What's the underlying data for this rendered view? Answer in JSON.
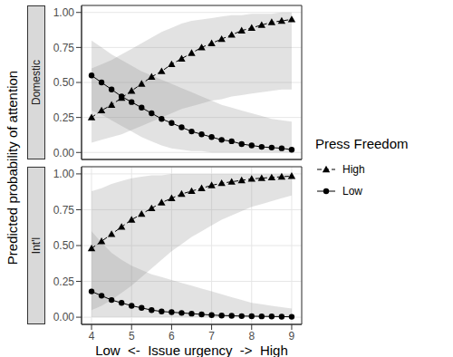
{
  "chart_data": [
    {
      "type": "line",
      "title": "Domestic",
      "ylabel": "Predicted probability of attention",
      "legend_title": "Press Freedom",
      "legend": "right",
      "grid": true,
      "tick_labels": "y",
      "x": [
        4,
        4.25,
        4.5,
        4.75,
        5,
        5.25,
        5.5,
        5.75,
        6,
        6.25,
        6.5,
        6.75,
        7,
        7.25,
        7.5,
        7.75,
        8,
        8.25,
        8.5,
        8.75,
        9
      ],
      "xlim": [
        3.75,
        9.25
      ],
      "xticks": [
        4,
        5,
        6,
        7,
        8,
        9
      ],
      "ylim": [
        -0.05,
        1.05
      ],
      "yticks": [
        {
          "value": 0,
          "label": "0.00"
        },
        {
          "value": 0.25,
          "label": "0.25"
        },
        {
          "value": 0.5,
          "label": "0.50"
        },
        {
          "value": 0.75,
          "label": "0.75"
        },
        {
          "value": 1,
          "label": "1.00"
        }
      ],
      "series": [
        {
          "name": "High",
          "color": "#000000",
          "marker": "triangle",
          "line_style": "dashed",
          "values": [
            0.25,
            0.3,
            0.34,
            0.39,
            0.44,
            0.49,
            0.54,
            0.58,
            0.63,
            0.67,
            0.71,
            0.75,
            0.78,
            0.81,
            0.84,
            0.87,
            0.89,
            0.91,
            0.93,
            0.94,
            0.95
          ],
          "lower": [
            0.07,
            0.09,
            0.11,
            0.13,
            0.16,
            0.19,
            0.22,
            0.25,
            0.28,
            0.31,
            0.33,
            0.35,
            0.37,
            0.38,
            0.4,
            0.41,
            0.42,
            0.43,
            0.44,
            0.45,
            0.45
          ],
          "upper": [
            0.6,
            0.63,
            0.66,
            0.7,
            0.74,
            0.78,
            0.82,
            0.86,
            0.89,
            0.92,
            0.94,
            0.95,
            0.96,
            0.97,
            0.98,
            0.98,
            0.99,
            0.99,
            0.99,
            1,
            1
          ]
        },
        {
          "name": "Low",
          "color": "#000000",
          "marker": "circle",
          "line_style": "solid",
          "values": [
            0.55,
            0.5,
            0.45,
            0.4,
            0.36,
            0.32,
            0.28,
            0.24,
            0.21,
            0.18,
            0.15,
            0.13,
            0.11,
            0.09,
            0.08,
            0.06,
            0.05,
            0.04,
            0.035,
            0.03,
            0.02
          ],
          "lower": [
            0.3,
            0.27,
            0.23,
            0.19,
            0.15,
            0.11,
            0.08,
            0.05,
            0.03,
            0.02,
            0.01,
            0.01,
            0,
            0,
            0,
            0,
            0,
            0,
            0,
            0,
            0
          ],
          "upper": [
            0.8,
            0.75,
            0.7,
            0.66,
            0.62,
            0.58,
            0.55,
            0.52,
            0.49,
            0.46,
            0.43,
            0.4,
            0.37,
            0.34,
            0.32,
            0.3,
            0.28,
            0.26,
            0.24,
            0.23,
            0.22
          ]
        }
      ]
    },
    {
      "type": "line",
      "title": "Int'l",
      "xlabel": "Low  <-  Issue urgency  ->  High",
      "grid": true,
      "x": [
        4,
        4.25,
        4.5,
        4.75,
        5,
        5.25,
        5.5,
        5.75,
        6,
        6.25,
        6.5,
        6.75,
        7,
        7.25,
        7.5,
        7.75,
        8,
        8.25,
        8.5,
        8.75,
        9
      ],
      "xlim": [
        3.75,
        9.25
      ],
      "xticks": [
        4,
        5,
        6,
        7,
        8,
        9
      ],
      "ylim": [
        -0.05,
        1.05
      ],
      "yticks": [
        {
          "value": 0,
          "label": "0.00"
        },
        {
          "value": 0.25,
          "label": "0.25"
        },
        {
          "value": 0.5,
          "label": "0.50"
        },
        {
          "value": 0.75,
          "label": "0.75"
        },
        {
          "value": 1,
          "label": "1.00"
        }
      ],
      "series": [
        {
          "name": "High",
          "color": "#000000",
          "marker": "triangle",
          "line_style": "dashed",
          "values": [
            0.48,
            0.53,
            0.58,
            0.63,
            0.68,
            0.72,
            0.76,
            0.8,
            0.83,
            0.86,
            0.88,
            0.9,
            0.92,
            0.935,
            0.945,
            0.955,
            0.965,
            0.97,
            0.975,
            0.98,
            0.985
          ],
          "lower": [
            0.05,
            0.08,
            0.12,
            0.17,
            0.22,
            0.28,
            0.34,
            0.4,
            0.46,
            0.51,
            0.56,
            0.6,
            0.64,
            0.68,
            0.71,
            0.74,
            0.77,
            0.79,
            0.81,
            0.83,
            0.85
          ],
          "upper": [
            0.88,
            0.9,
            0.93,
            0.95,
            0.97,
            0.98,
            0.99,
            0.99,
            1,
            1,
            1,
            1,
            1,
            1,
            1,
            1,
            1,
            1,
            1,
            1,
            1
          ]
        },
        {
          "name": "Low",
          "color": "#000000",
          "marker": "circle",
          "line_style": "solid",
          "values": [
            0.18,
            0.15,
            0.12,
            0.1,
            0.08,
            0.065,
            0.05,
            0.04,
            0.035,
            0.03,
            0.025,
            0.02,
            0.015,
            0.012,
            0.01,
            0.008,
            0.007,
            0.006,
            0.005,
            0.004,
            0.003
          ],
          "lower": [
            0,
            0,
            0,
            0,
            0,
            0,
            0,
            0,
            0,
            0,
            0,
            0,
            0,
            0,
            0,
            0,
            0,
            0,
            0,
            0,
            0
          ],
          "upper": [
            0.6,
            0.52,
            0.45,
            0.4,
            0.36,
            0.33,
            0.3,
            0.28,
            0.26,
            0.24,
            0.22,
            0.2,
            0.18,
            0.16,
            0.14,
            0.12,
            0.1,
            0.09,
            0.08,
            0.07,
            0.06
          ]
        }
      ]
    }
  ]
}
